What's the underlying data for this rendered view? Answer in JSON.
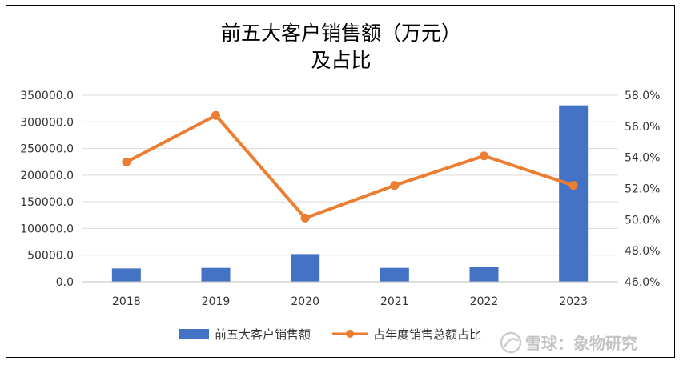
{
  "chart_data": {
    "type": "bar",
    "title_line1": "前五大客户销售额（万元）",
    "title_line2": "及占比",
    "categories": [
      "2018",
      "2019",
      "2020",
      "2021",
      "2022",
      "2023"
    ],
    "series": [
      {
        "name": "前五大客户销售额",
        "type": "bar",
        "axis": "left",
        "color": "#4472C4",
        "values": [
          25000,
          26000,
          52000,
          26000,
          28000,
          331000
        ]
      },
      {
        "name": "占年度销售总额占比",
        "type": "line",
        "axis": "right",
        "color": "#ED7D31",
        "values": [
          53.7,
          56.7,
          50.1,
          52.2,
          54.1,
          52.2
        ]
      }
    ],
    "y_left": {
      "min": 0,
      "max": 350000,
      "step": 50000,
      "tick_labels": [
        "0.0",
        "50000.0",
        "100000.0",
        "150000.0",
        "200000.0",
        "250000.0",
        "300000.0",
        "350000.0"
      ]
    },
    "y_right": {
      "min": 46,
      "max": 58,
      "step": 2,
      "tick_labels": [
        "46.0%",
        "48.0%",
        "50.0%",
        "52.0%",
        "54.0%",
        "56.0%",
        "58.0%"
      ]
    },
    "grid": true,
    "legend_position": "bottom"
  },
  "watermark": {
    "text": "雪球：象物研究",
    "icon": "snowball-logo-icon"
  }
}
